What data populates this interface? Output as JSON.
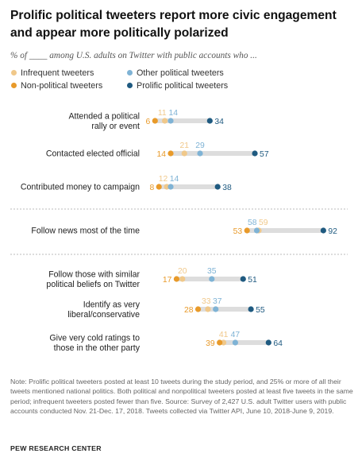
{
  "title": "Prolific political tweeters report more civic engagement and appear more politically polarized",
  "subtitle": "% of ____ among U.S. adults on Twitter with public accounts who ...",
  "colors": {
    "infrequent": "#f0c88a",
    "nonpolitical": "#e89a2a",
    "other_political": "#7fb3d5",
    "prolific": "#1f5a80",
    "track": "#dddddd"
  },
  "legend": [
    {
      "name": "Infrequent tweeters",
      "color": "#f0c88a"
    },
    {
      "name": "Other political tweeters",
      "color": "#7fb3d5"
    },
    {
      "name": "Non-political tweeters",
      "color": "#e89a2a"
    },
    {
      "name": "Prolific political tweeters",
      "color": "#1f5a80"
    }
  ],
  "chart_data": {
    "type": "scatter",
    "categories": [
      "Attended a political rally or event",
      "Contacted elected official",
      "Contributed money to campaign",
      "Follow news most of the time",
      "Follow those with similar political beliefs on Twitter",
      "Identify as very liberal/conservative",
      "Give very cold ratings to those in the other party"
    ],
    "series": [
      {
        "name": "Infrequent tweeters",
        "values": [
          11,
          21,
          12,
          59,
          20,
          33,
          41
        ]
      },
      {
        "name": "Non-political tweeters",
        "values": [
          6,
          14,
          8,
          53,
          17,
          28,
          39
        ]
      },
      {
        "name": "Other political tweeters",
        "values": [
          14,
          29,
          14,
          58,
          35,
          37,
          47
        ]
      },
      {
        "name": "Prolific political tweeters",
        "values": [
          34,
          57,
          38,
          92,
          51,
          55,
          64
        ]
      }
    ]
  },
  "rows_display": [
    {
      "label": [
        "Attended a political",
        "rally or event"
      ]
    },
    {
      "label": [
        "Contacted elected official"
      ]
    },
    {
      "label": [
        "Contributed money to campaign"
      ]
    },
    {
      "label": [
        "Follow news most of the time"
      ]
    },
    {
      "label": [
        "Follow those with similar",
        "political beliefs on Twitter"
      ]
    },
    {
      "label": [
        "Identify as very",
        "liberal/conservative"
      ]
    },
    {
      "label": [
        "Give very cold ratings to",
        "those in the other party"
      ]
    }
  ],
  "note": "Note: Prolific political tweeters posted at least 10 tweets during the study period, and 25% or more of all their tweets mentioned national politics. Both political and nonpolitical tweeters posted at least five tweets in the same period; infrequent tweeters posted fewer than five. Source: Survey of 2,427 U.S. adult Twitter users with public accounts conducted Nov. 21-Dec. 17, 2018. Tweets collected via Twitter API, June 10, 2018-June 9, 2019.",
  "source_org": "PEW RESEARCH CENTER"
}
